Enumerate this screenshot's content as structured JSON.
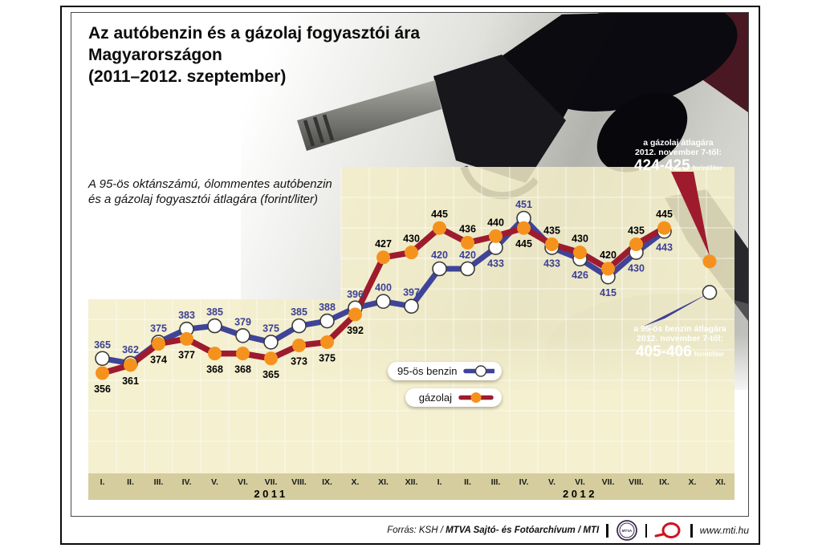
{
  "title": "Az autóbenzin és a gázolaj fogyasztói ára\nMagyarországon\n(2011–2012. szeptember)",
  "subtitle": "A 95-ös oktánszámú, ólommentes autóbenzin\nés a gázolaj fogyasztói átlagára (forint/liter)",
  "chart_data": {
    "type": "line",
    "categories": [
      "I.",
      "II.",
      "III.",
      "IV.",
      "V.",
      "VI.",
      "VII.",
      "VIII.",
      "IX.",
      "X.",
      "XI.",
      "XII.",
      "I.",
      "II.",
      "III.",
      "IV.",
      "V.",
      "VI.",
      "VII.",
      "VIII.",
      "IX.",
      "X.",
      "XI."
    ],
    "year_groups": [
      {
        "label": "2011",
        "months": 12
      },
      {
        "label": "2012",
        "months": 11
      }
    ],
    "unit": "forint/liter",
    "y_axis_visible": false,
    "ylim": [
      294,
      482
    ],
    "grid": true,
    "series": [
      {
        "name": "95-ös benzin",
        "color": "#3f4499",
        "marker_fill": "#ffffff",
        "label_color": "#3c3f94",
        "values": [
          365,
          362,
          375,
          383,
          385,
          379,
          375,
          385,
          388,
          396,
          400,
          397,
          420,
          420,
          433,
          451,
          433,
          426,
          415,
          430,
          443
        ]
      },
      {
        "name": "gázolaj",
        "color": "#9e1b2e",
        "marker_fill": "#f5921e",
        "label_color": "#000000",
        "values": [
          356,
          361,
          374,
          377,
          368,
          368,
          365,
          373,
          375,
          392,
          427,
          430,
          445,
          436,
          440,
          445,
          435,
          430,
          420,
          435,
          445
        ]
      }
    ],
    "november_points": [
      {
        "series_index": 1,
        "value": 424.5
      },
      {
        "series_index": 0,
        "value": 405.5
      }
    ]
  },
  "legend": {
    "items": [
      {
        "label": "95-ös benzin"
      },
      {
        "label": "gázolaj"
      }
    ]
  },
  "callouts": {
    "diesel": {
      "line1": "a gázolaj átlagára",
      "line2": "2012. november 7-től:",
      "value": "424-425",
      "unit": "forint/liter",
      "bg": "#9e1b2e"
    },
    "petrol": {
      "line1": "a 95-ös benzin átlagára",
      "line2": "2012. november 7-től:",
      "value": "405-406",
      "unit": "forint/liter",
      "bg": "#3c3f94"
    }
  },
  "footer": {
    "source_prefix": "Forrás: KSH / ",
    "source_main": "MTVA Sajtó- és Fotóarchívum / MTI",
    "mtva_logo_text": "MTVA",
    "url": "www.mti.hu"
  },
  "colors": {
    "panel": "#f2edc8",
    "axis_strip": "#d5cd9d",
    "gridline": "#ffffff",
    "mtva_logo": "#3d2b52",
    "mti_logo": "#d0121f"
  }
}
